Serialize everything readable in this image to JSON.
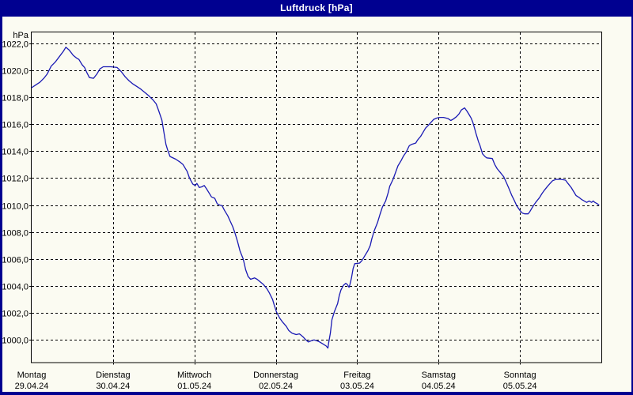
{
  "window": {
    "title": "Luftdruck [hPa]"
  },
  "colors": {
    "chrome": "#000090",
    "title_text": "#FFFFFF",
    "background": "#FBFBF2",
    "grid": "#000000",
    "axis": "#000000",
    "line": "#1A1AB4"
  },
  "chart_data": {
    "type": "line",
    "title": "Luftdruck [hPa]",
    "y_unit": "hPa",
    "ylabel": "hPa",
    "xlabel": "",
    "grid": "on",
    "legend": "none",
    "ylim": [
      998.35,
      1022.8
    ],
    "x_range_days": [
      0,
      7
    ],
    "y_ticks": [
      {
        "value": 1022,
        "label": "1022,0"
      },
      {
        "value": 1020,
        "label": "1020,0"
      },
      {
        "value": 1018,
        "label": "1018,0"
      },
      {
        "value": 1016,
        "label": "1016,0"
      },
      {
        "value": 1014,
        "label": "1014,0"
      },
      {
        "value": 1012,
        "label": "1012,0"
      },
      {
        "value": 1010,
        "label": "1010,0"
      },
      {
        "value": 1008,
        "label": "1008,0"
      },
      {
        "value": 1006,
        "label": "1006,0"
      },
      {
        "value": 1004,
        "label": "1004,0"
      },
      {
        "value": 1002,
        "label": "1002,0"
      },
      {
        "value": 1000,
        "label": "1000,0"
      }
    ],
    "x_categories": [
      {
        "name": "Montag",
        "date": "29.04.24"
      },
      {
        "name": "Dienstag",
        "date": "30.04.24"
      },
      {
        "name": "Mittwoch",
        "date": "01.05.24"
      },
      {
        "name": "Donnerstag",
        "date": "02.05.24"
      },
      {
        "name": "Freitag",
        "date": "03.05.24"
      },
      {
        "name": "Samstag",
        "date": "04.05.24"
      },
      {
        "name": "Sonntag",
        "date": "05.05.24"
      }
    ],
    "series": [
      {
        "name": "Luftdruck",
        "unit": "hPa",
        "points": [
          [
            0.0,
            1018.7
          ],
          [
            0.05,
            1018.9
          ],
          [
            0.1,
            1019.1
          ],
          [
            0.15,
            1019.4
          ],
          [
            0.19,
            1019.7
          ],
          [
            0.24,
            1020.3
          ],
          [
            0.29,
            1020.6
          ],
          [
            0.34,
            1021.0
          ],
          [
            0.39,
            1021.4
          ],
          [
            0.42,
            1021.7
          ],
          [
            0.46,
            1021.5
          ],
          [
            0.51,
            1021.1
          ],
          [
            0.55,
            1020.9
          ],
          [
            0.58,
            1020.8
          ],
          [
            0.62,
            1020.4
          ],
          [
            0.65,
            1020.2
          ],
          [
            0.68,
            1019.8
          ],
          [
            0.71,
            1019.45
          ],
          [
            0.76,
            1019.4
          ],
          [
            0.8,
            1019.7
          ],
          [
            0.84,
            1020.1
          ],
          [
            0.88,
            1020.25
          ],
          [
            0.97,
            1020.25
          ],
          [
            1.05,
            1020.2
          ],
          [
            1.1,
            1019.9
          ],
          [
            1.15,
            1019.5
          ],
          [
            1.2,
            1019.2
          ],
          [
            1.24,
            1019.0
          ],
          [
            1.29,
            1018.8
          ],
          [
            1.34,
            1018.6
          ],
          [
            1.39,
            1018.35
          ],
          [
            1.44,
            1018.1
          ],
          [
            1.49,
            1017.8
          ],
          [
            1.53,
            1017.5
          ],
          [
            1.56,
            1017.0
          ],
          [
            1.6,
            1016.3
          ],
          [
            1.63,
            1015.2
          ],
          [
            1.65,
            1014.5
          ],
          [
            1.67,
            1014.1
          ],
          [
            1.7,
            1013.6
          ],
          [
            1.77,
            1013.4
          ],
          [
            1.82,
            1013.2
          ],
          [
            1.86,
            1013.0
          ],
          [
            1.91,
            1012.5
          ],
          [
            1.94,
            1012.0
          ],
          [
            1.98,
            1011.55
          ],
          [
            2.01,
            1011.45
          ],
          [
            2.03,
            1011.6
          ],
          [
            2.06,
            1011.3
          ],
          [
            2.09,
            1011.35
          ],
          [
            2.12,
            1011.45
          ],
          [
            2.15,
            1011.2
          ],
          [
            2.18,
            1010.9
          ],
          [
            2.21,
            1010.6
          ],
          [
            2.25,
            1010.5
          ],
          [
            2.28,
            1010.1
          ],
          [
            2.31,
            1010.0
          ],
          [
            2.34,
            1009.95
          ],
          [
            2.37,
            1009.6
          ],
          [
            2.41,
            1009.2
          ],
          [
            2.44,
            1008.8
          ],
          [
            2.47,
            1008.4
          ],
          [
            2.5,
            1007.9
          ],
          [
            2.53,
            1007.3
          ],
          [
            2.56,
            1006.6
          ],
          [
            2.6,
            1006.0
          ],
          [
            2.63,
            1005.2
          ],
          [
            2.66,
            1004.7
          ],
          [
            2.69,
            1004.5
          ],
          [
            2.74,
            1004.6
          ],
          [
            2.77,
            1004.5
          ],
          [
            2.81,
            1004.3
          ],
          [
            2.85,
            1004.1
          ],
          [
            2.89,
            1003.8
          ],
          [
            2.92,
            1003.5
          ],
          [
            2.96,
            1003.0
          ],
          [
            2.98,
            1002.6
          ],
          [
            3.01,
            1002.05
          ],
          [
            3.05,
            1001.6
          ],
          [
            3.08,
            1001.35
          ],
          [
            3.13,
            1001.0
          ],
          [
            3.16,
            1000.7
          ],
          [
            3.2,
            1000.5
          ],
          [
            3.25,
            1000.4
          ],
          [
            3.29,
            1000.45
          ],
          [
            3.31,
            1000.35
          ],
          [
            3.34,
            1000.2
          ],
          [
            3.37,
            1000.0
          ],
          [
            3.4,
            999.85
          ],
          [
            3.44,
            999.95
          ],
          [
            3.47,
            1000.0
          ],
          [
            3.5,
            999.95
          ],
          [
            3.54,
            999.85
          ],
          [
            3.58,
            999.7
          ],
          [
            3.62,
            999.55
          ],
          [
            3.64,
            999.4
          ],
          [
            3.65,
            999.8
          ],
          [
            3.67,
            1000.5
          ],
          [
            3.69,
            1001.5
          ],
          [
            3.72,
            1002.1
          ],
          [
            3.76,
            1002.7
          ],
          [
            3.78,
            1003.3
          ],
          [
            3.8,
            1003.7
          ],
          [
            3.83,
            1004.05
          ],
          [
            3.86,
            1004.2
          ],
          [
            3.88,
            1004.1
          ],
          [
            3.9,
            1003.9
          ],
          [
            3.91,
            1004.1
          ],
          [
            3.93,
            1004.6
          ],
          [
            3.95,
            1005.3
          ],
          [
            3.97,
            1005.65
          ],
          [
            4.03,
            1005.7
          ],
          [
            4.06,
            1005.9
          ],
          [
            4.1,
            1006.3
          ],
          [
            4.13,
            1006.6
          ],
          [
            4.16,
            1007.0
          ],
          [
            4.18,
            1007.5
          ],
          [
            4.21,
            1008.1
          ],
          [
            4.25,
            1008.7
          ],
          [
            4.28,
            1009.3
          ],
          [
            4.31,
            1009.85
          ],
          [
            4.35,
            1010.3
          ],
          [
            4.38,
            1010.9
          ],
          [
            4.4,
            1011.4
          ],
          [
            4.44,
            1011.9
          ],
          [
            4.47,
            1012.4
          ],
          [
            4.5,
            1012.9
          ],
          [
            4.54,
            1013.3
          ],
          [
            4.57,
            1013.65
          ],
          [
            4.6,
            1013.9
          ],
          [
            4.64,
            1014.4
          ],
          [
            4.67,
            1014.5
          ],
          [
            4.72,
            1014.6
          ],
          [
            4.74,
            1014.8
          ],
          [
            4.78,
            1015.1
          ],
          [
            4.81,
            1015.4
          ],
          [
            4.84,
            1015.7
          ],
          [
            4.88,
            1015.95
          ],
          [
            4.91,
            1016.15
          ],
          [
            4.94,
            1016.35
          ],
          [
            4.98,
            1016.45
          ],
          [
            5.01,
            1016.5
          ],
          [
            5.06,
            1016.5
          ],
          [
            5.09,
            1016.45
          ],
          [
            5.12,
            1016.4
          ],
          [
            5.15,
            1016.27
          ],
          [
            5.18,
            1016.37
          ],
          [
            5.22,
            1016.55
          ],
          [
            5.25,
            1016.75
          ],
          [
            5.28,
            1017.05
          ],
          [
            5.32,
            1017.2
          ],
          [
            5.35,
            1016.95
          ],
          [
            5.38,
            1016.65
          ],
          [
            5.4,
            1016.45
          ],
          [
            5.42,
            1016.15
          ],
          [
            5.44,
            1015.75
          ],
          [
            5.46,
            1015.3
          ],
          [
            5.49,
            1014.7
          ],
          [
            5.51,
            1014.4
          ],
          [
            5.54,
            1013.8
          ],
          [
            5.57,
            1013.6
          ],
          [
            5.59,
            1013.5
          ],
          [
            5.66,
            1013.45
          ],
          [
            5.69,
            1013.0
          ],
          [
            5.72,
            1012.7
          ],
          [
            5.76,
            1012.4
          ],
          [
            5.78,
            1012.25
          ],
          [
            5.8,
            1012.1
          ],
          [
            5.83,
            1011.7
          ],
          [
            5.86,
            1011.3
          ],
          [
            5.9,
            1010.7
          ],
          [
            5.93,
            1010.35
          ],
          [
            5.96,
            1009.95
          ],
          [
            6.0,
            1009.6
          ],
          [
            6.03,
            1009.4
          ],
          [
            6.06,
            1009.35
          ],
          [
            6.1,
            1009.35
          ],
          [
            6.12,
            1009.5
          ],
          [
            6.14,
            1009.7
          ],
          [
            6.17,
            1010.0
          ],
          [
            6.2,
            1010.25
          ],
          [
            6.24,
            1010.55
          ],
          [
            6.27,
            1010.85
          ],
          [
            6.3,
            1011.1
          ],
          [
            6.34,
            1011.4
          ],
          [
            6.37,
            1011.6
          ],
          [
            6.4,
            1011.8
          ],
          [
            6.44,
            1011.9
          ],
          [
            6.51,
            1011.9
          ],
          [
            6.56,
            1011.85
          ],
          [
            6.59,
            1011.6
          ],
          [
            6.63,
            1011.3
          ],
          [
            6.66,
            1011.0
          ],
          [
            6.69,
            1010.7
          ],
          [
            6.73,
            1010.55
          ],
          [
            6.76,
            1010.4
          ],
          [
            6.79,
            1010.3
          ],
          [
            6.82,
            1010.2
          ],
          [
            6.85,
            1010.3
          ],
          [
            6.88,
            1010.2
          ],
          [
            6.9,
            1010.3
          ],
          [
            6.92,
            1010.2
          ],
          [
            6.95,
            1010.1
          ],
          [
            6.97,
            1010.0
          ]
        ]
      }
    ]
  }
}
